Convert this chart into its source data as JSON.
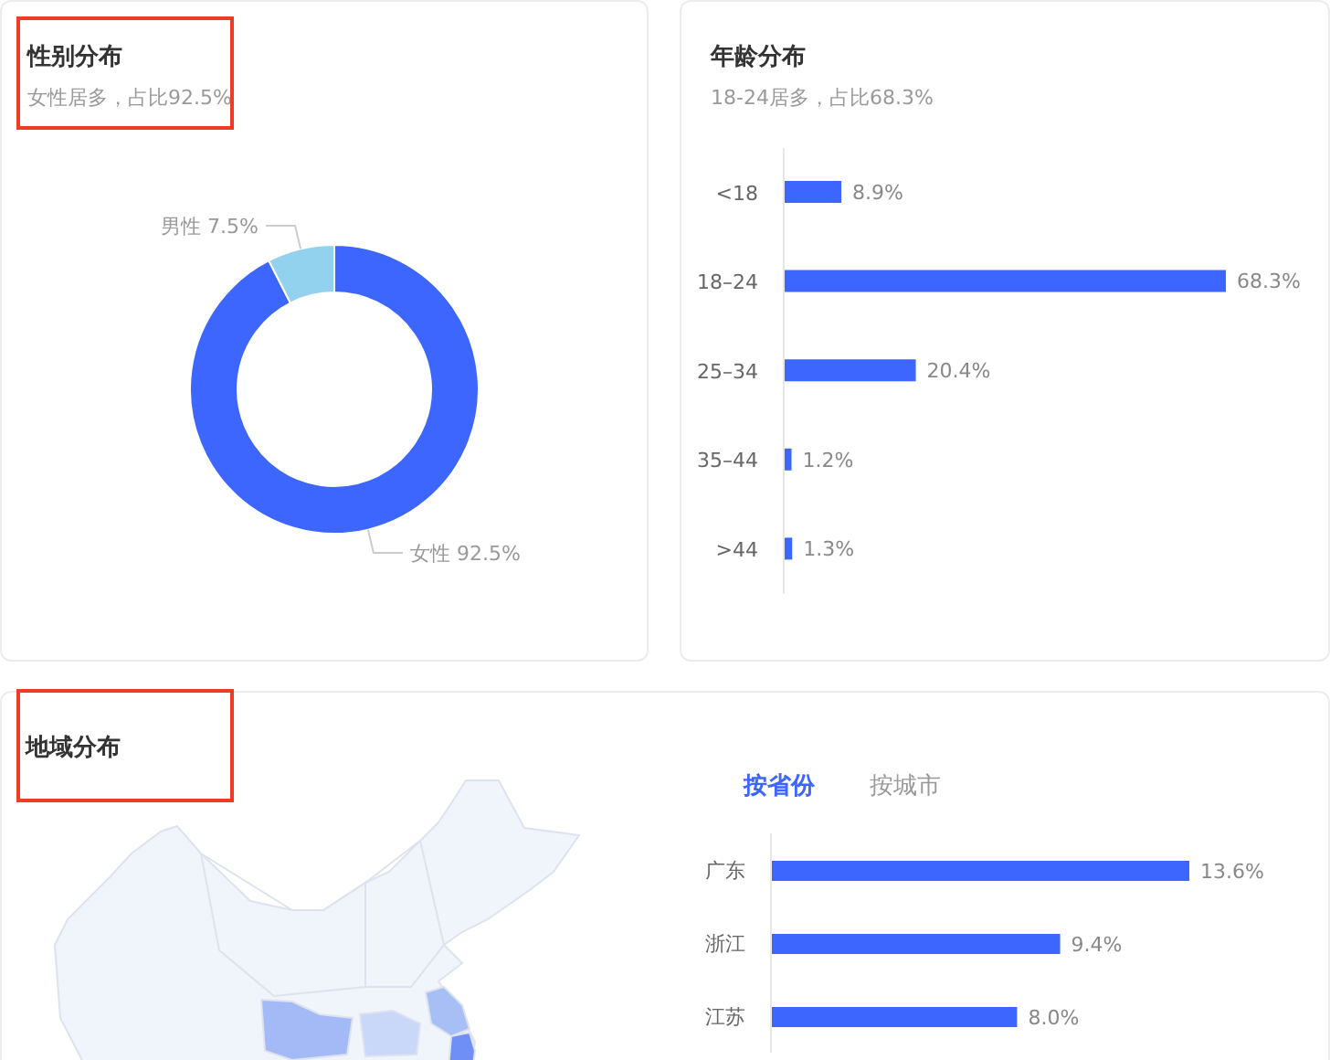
{
  "chart_data": [
    {
      "type": "donut",
      "title": "性别分布",
      "subtitle": "女性居多，占比92.5%",
      "categories": [
        "女性",
        "男性"
      ],
      "values": [
        92.5,
        7.5
      ],
      "colors": [
        "#3d66fe",
        "#92d2ee"
      ],
      "value_labels": [
        "92.5%",
        "7.5%"
      ]
    },
    {
      "type": "bar",
      "orientation": "horizontal",
      "title": "年龄分布",
      "subtitle": "18-24居多，占比68.3%",
      "categories": [
        "<18",
        "18–24",
        "25–34",
        "35–44",
        ">44"
      ],
      "values": [
        8.9,
        68.3,
        20.4,
        1.2,
        1.3
      ],
      "color": "#3d66fe",
      "tick_labels": "y",
      "value_labels": [
        "8.9%",
        "68.3%",
        "20.4%",
        "1.2%",
        "1.3%"
      ]
    },
    {
      "type": "other",
      "title": "地域分布"
    },
    {
      "type": "bar",
      "orientation": "horizontal",
      "annotations": [
        "按省份",
        "按城市"
      ],
      "categories": [
        "广东",
        "浙江",
        "江苏"
      ],
      "values": [
        13.6,
        9.4,
        8.0
      ],
      "color": "#3d66fe",
      "tick_labels": "y",
      "value_labels": [
        "13.6%",
        "9.4%",
        "8.0%"
      ]
    }
  ]
}
